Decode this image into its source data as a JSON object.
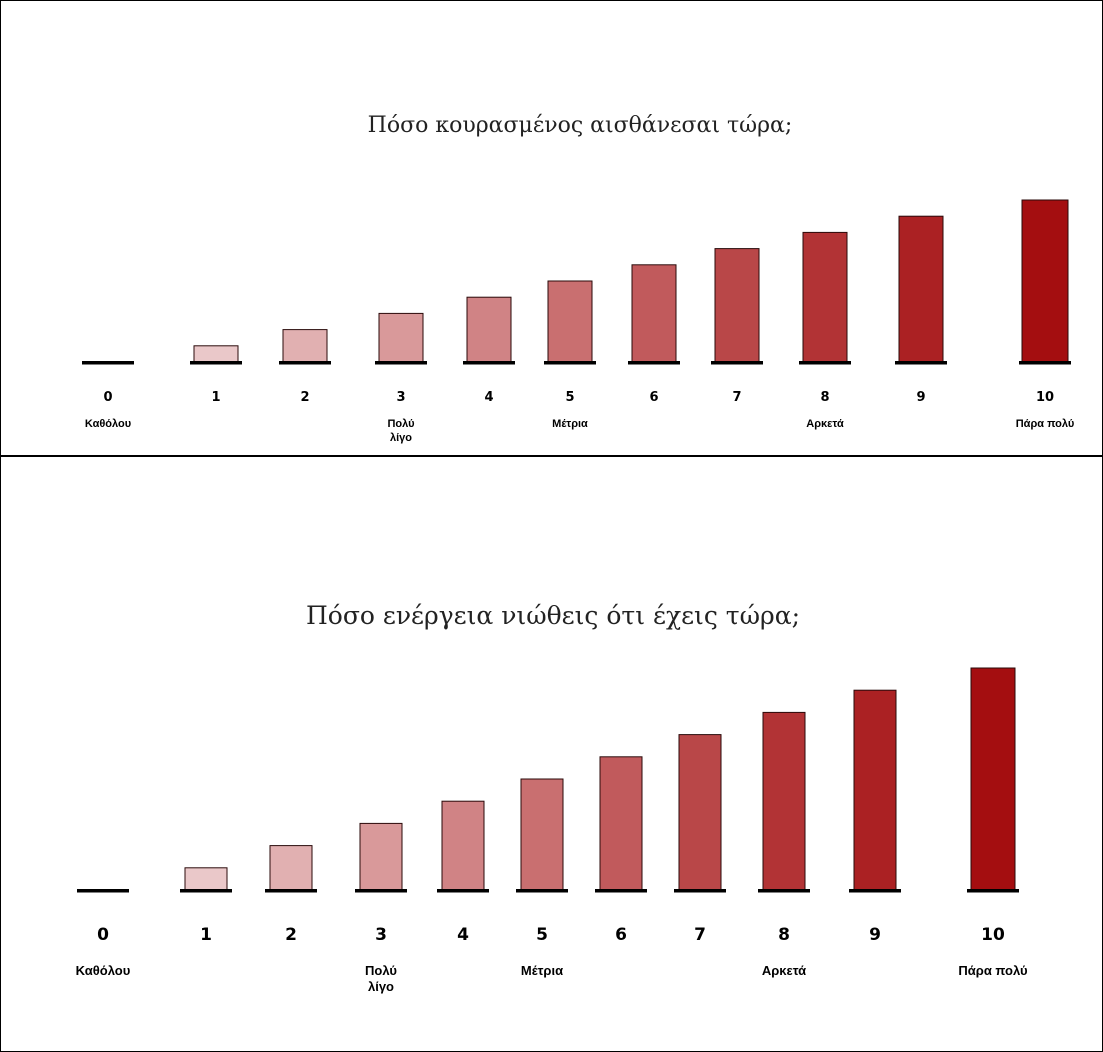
{
  "charts": [
    {
      "question": "Πόσο κουρασμένος αισθάνεσαι τώρα;",
      "scale": [
        "0",
        "1",
        "2",
        "3",
        "4",
        "5",
        "6",
        "7",
        "8",
        "9",
        "10"
      ],
      "anchors": [
        {
          "at": 0,
          "lines": [
            "Καθόλου"
          ]
        },
        {
          "at": 3,
          "lines": [
            "Πολύ",
            "λίγο"
          ]
        },
        {
          "at": 5,
          "lines": [
            "Μέτρια"
          ]
        },
        {
          "at": 8,
          "lines": [
            "Αρκετά"
          ]
        },
        {
          "at": 10,
          "lines": [
            "Πάρα πολύ"
          ]
        }
      ],
      "bar_levels": [
        0,
        1,
        2,
        3,
        4,
        5,
        6,
        7,
        8,
        9,
        10
      ],
      "colors": {
        "light": "#f6e7e8",
        "dark": "#a40e10"
      }
    },
    {
      "question": "Πόσο ενέργεια νιώθεις ότι έχεις τώρα;",
      "scale": [
        "0",
        "1",
        "2",
        "3",
        "4",
        "5",
        "6",
        "7",
        "8",
        "9",
        "10"
      ],
      "anchors": [
        {
          "at": 0,
          "lines": [
            "Καθόλου"
          ]
        },
        {
          "at": 3,
          "lines": [
            "Πολύ",
            "λίγο"
          ]
        },
        {
          "at": 5,
          "lines": [
            "Μέτρια"
          ]
        },
        {
          "at": 8,
          "lines": [
            "Αρκετά"
          ]
        },
        {
          "at": 10,
          "lines": [
            "Πάρα πολύ"
          ]
        }
      ],
      "bar_levels": [
        0,
        1,
        2,
        3,
        4,
        5,
        6,
        7,
        8,
        9,
        10
      ],
      "colors": {
        "light": "#f6e7e8",
        "dark": "#a40e10"
      }
    }
  ]
}
